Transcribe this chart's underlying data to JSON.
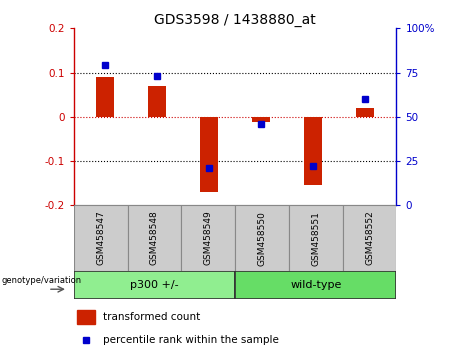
{
  "title": "GDS3598 / 1438880_at",
  "samples": [
    "GSM458547",
    "GSM458548",
    "GSM458549",
    "GSM458550",
    "GSM458551",
    "GSM458552"
  ],
  "transformed_counts": [
    0.09,
    0.07,
    -0.17,
    -0.012,
    -0.155,
    0.02
  ],
  "percentile_ranks": [
    79,
    73,
    21,
    46,
    22,
    60
  ],
  "bar_color": "#CC2200",
  "dot_color": "#0000CC",
  "ylim_left": [
    -0.2,
    0.2
  ],
  "ylim_right": [
    0,
    100
  ],
  "yticks_left": [
    -0.2,
    -0.1,
    0,
    0.1,
    0.2
  ],
  "yticks_right": [
    0,
    25,
    50,
    75,
    100
  ],
  "ytick_labels_right": [
    "0",
    "25",
    "50",
    "75",
    "100%"
  ],
  "left_axis_color": "#CC0000",
  "right_axis_color": "#0000CC",
  "bg_color": "#FFFFFF",
  "plot_bg": "#FFFFFF",
  "group_label": "genotype/variation",
  "groups": [
    {
      "label": "p300 +/-",
      "start": 0,
      "end": 3,
      "color": "#90EE90"
    },
    {
      "label": "wild-type",
      "start": 3,
      "end": 6,
      "color": "#66DD66"
    }
  ],
  "sample_box_color": "#CCCCCC",
  "legend_items": [
    "transformed count",
    "percentile rank within the sample"
  ],
  "bar_width": 0.35,
  "n_samples": 6
}
